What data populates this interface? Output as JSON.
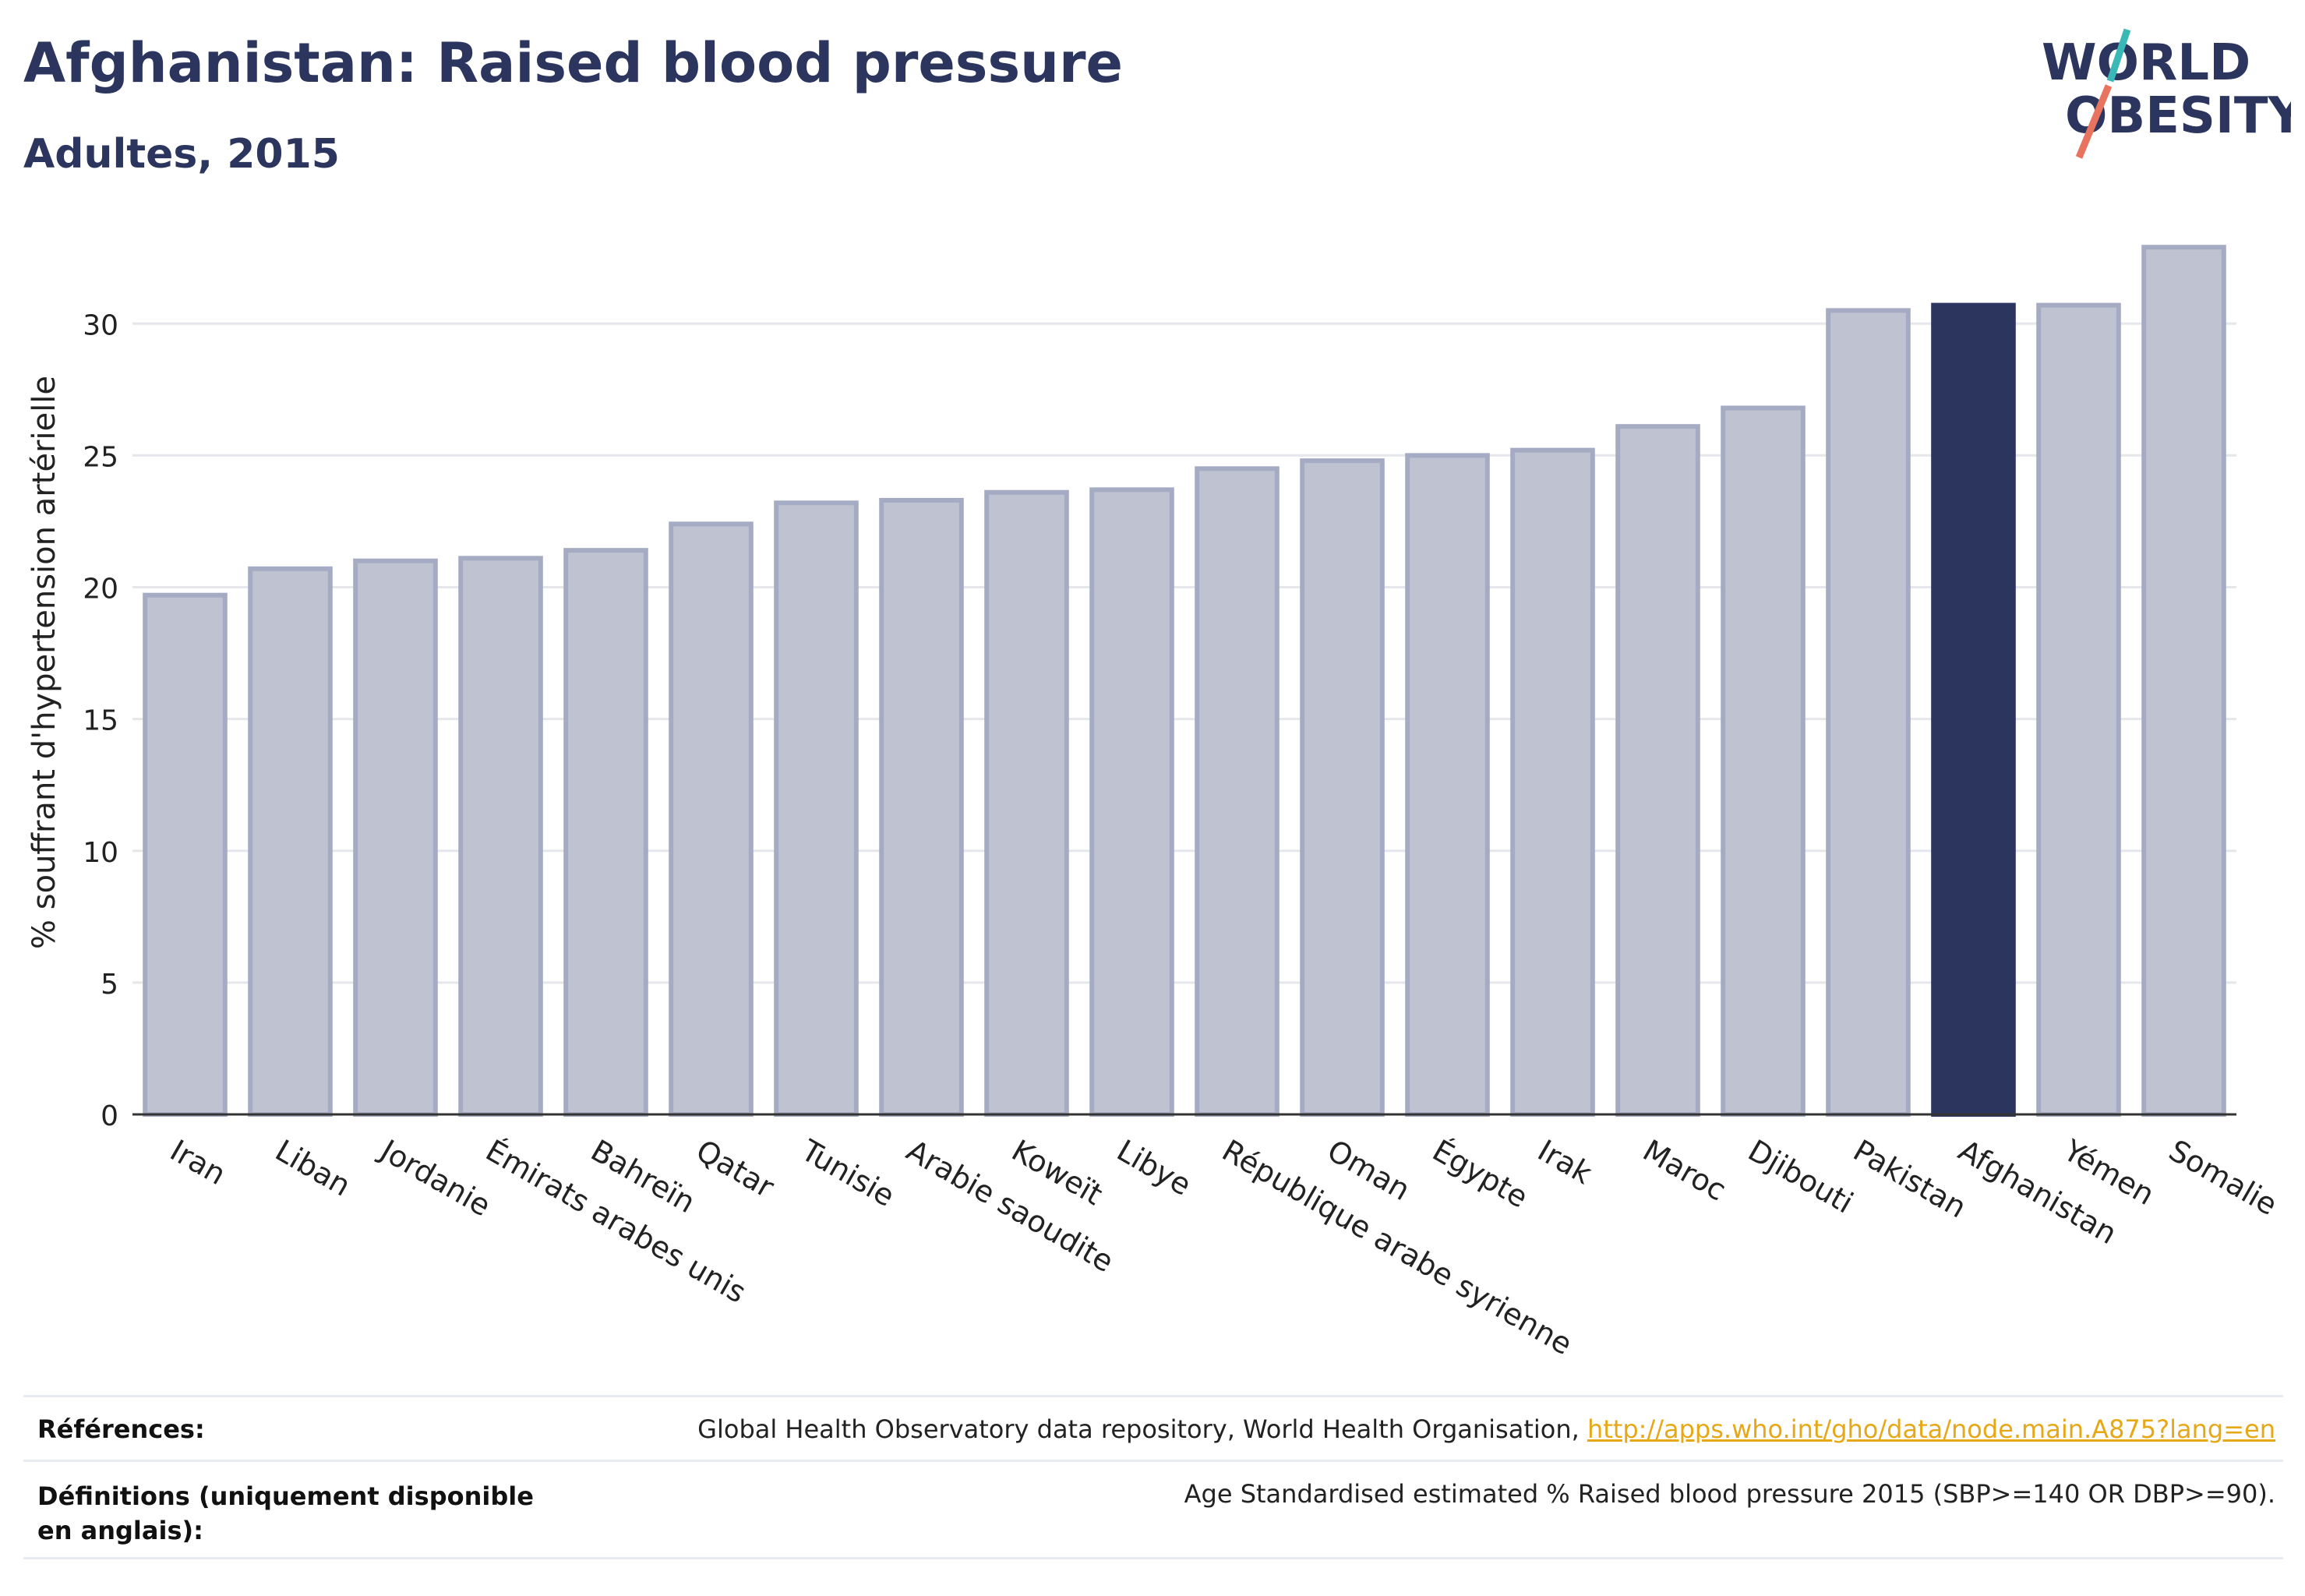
{
  "header": {
    "title": "Afghanistan: Raised blood pressure",
    "subtitle": "Adultes, 2015"
  },
  "logo": {
    "line1": "WORLD",
    "line2": "OBESITY",
    "accent_teal": "#3ab8b5",
    "accent_coral": "#e8735f"
  },
  "colors": {
    "bar_default": "#bfc3d1",
    "bar_default_stroke": "#a6abc4",
    "bar_highlight": "#2b355e",
    "grid": "#e6e7ec",
    "text": "#2b355e"
  },
  "chart_data": {
    "type": "bar",
    "ylabel": "% souffrant d'hypertension artérielle",
    "ylim": [
      0,
      34
    ],
    "yticks": [
      0,
      5,
      10,
      15,
      20,
      25,
      30
    ],
    "grid": true,
    "highlight": "Afghanistan",
    "categories": [
      "Iran",
      "Liban",
      "Jordanie",
      "Émirats arabes unis",
      "Bahreïn",
      "Qatar",
      "Tunisie",
      "Arabie saoudite",
      "Koweït",
      "Libye",
      "République arabe syrienne",
      "Oman",
      "Égypte",
      "Irak",
      "Maroc",
      "Djibouti",
      "Pakistan",
      "Afghanistan",
      "Yémen",
      "Somalie"
    ],
    "values": [
      19.7,
      20.7,
      21.0,
      21.1,
      21.4,
      22.4,
      23.2,
      23.3,
      23.6,
      23.7,
      24.5,
      24.8,
      25.0,
      25.2,
      26.1,
      26.8,
      30.5,
      30.7,
      30.7,
      32.9
    ]
  },
  "references": {
    "refs_label": "Références:",
    "refs_text": "Global Health Observatory data repository, World Health Organisation, ",
    "refs_link": "http://apps.who.int/gho/data/node.main.A875?lang=en",
    "defs_label": "Définitions (uniquement disponible en anglais):",
    "defs_text": "Age Standardised estimated % Raised blood pressure 2015 (SBP>=140 OR DBP>=90)."
  }
}
